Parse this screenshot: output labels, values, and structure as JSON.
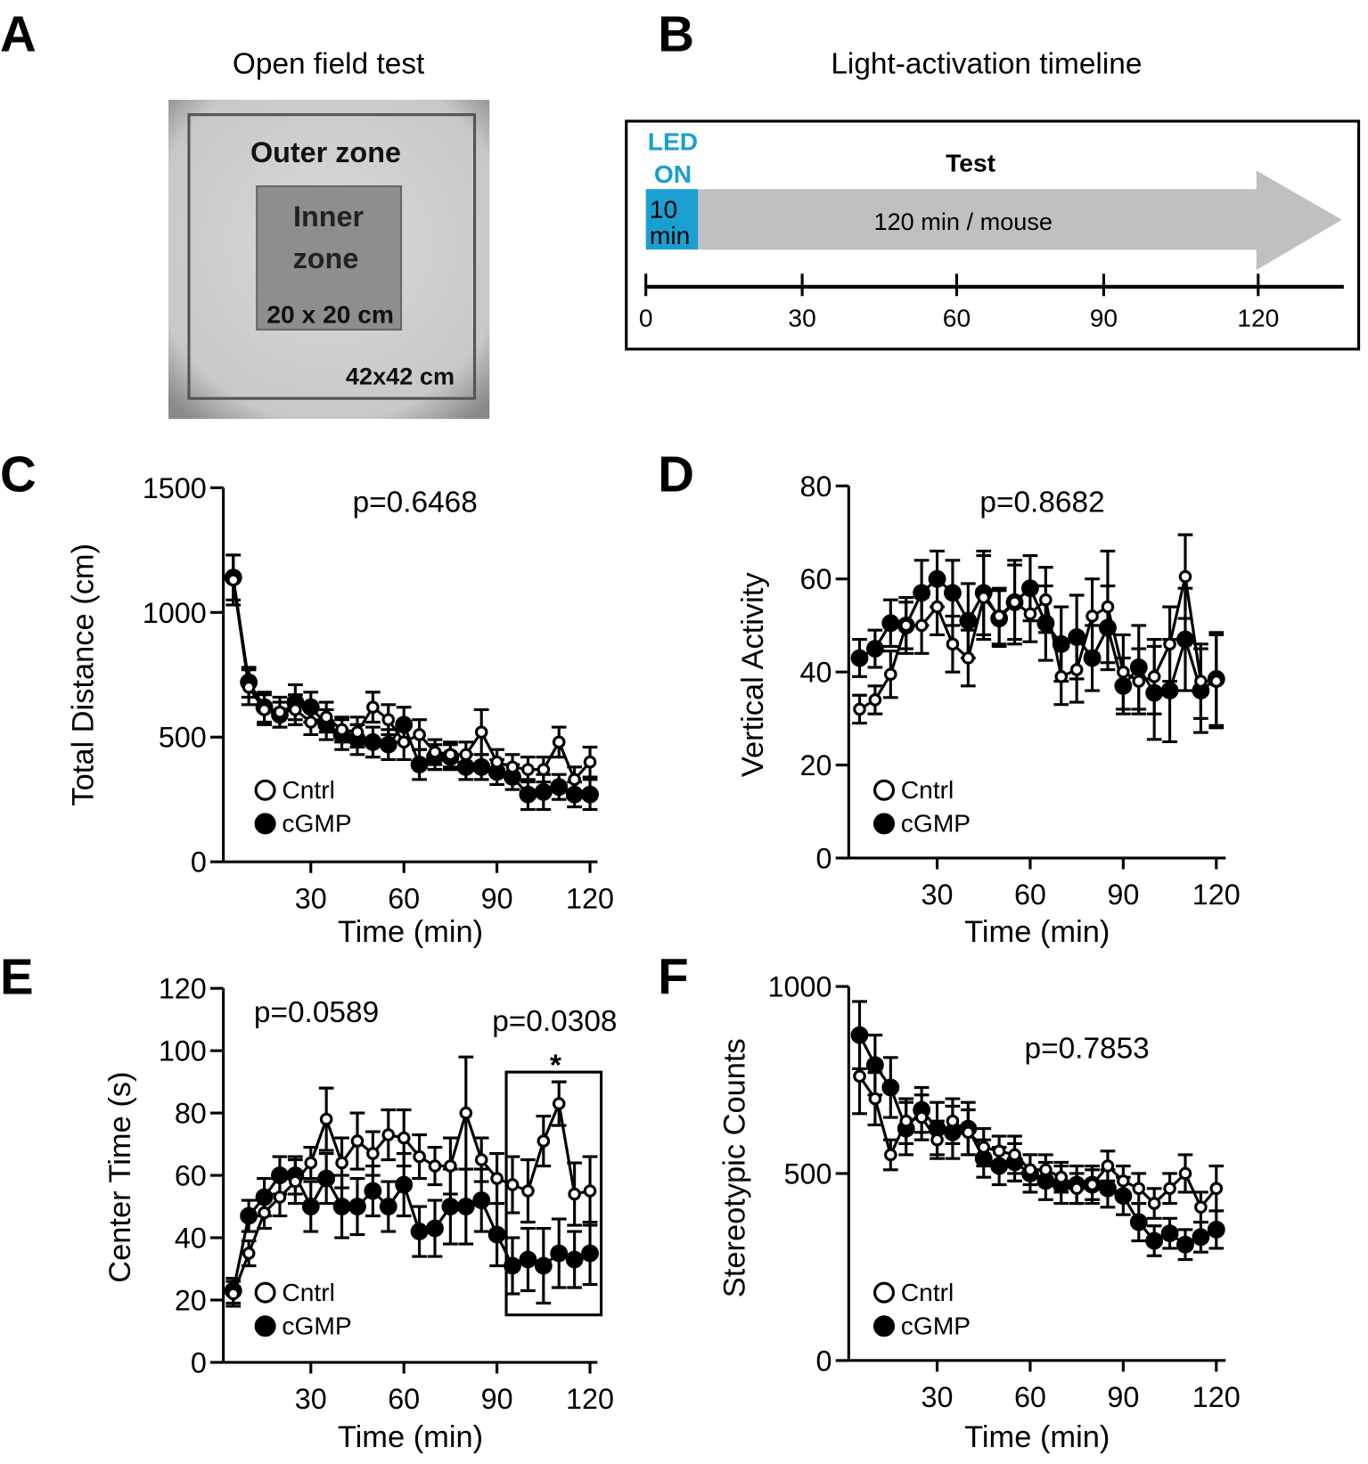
{
  "panel_labels": [
    "A",
    "B",
    "C",
    "D",
    "E",
    "F"
  ],
  "panel_a": {
    "title": "Open field test",
    "outer_zone": "Outer zone",
    "inner_zone_line1": "Inner",
    "inner_zone_line2": "zone",
    "inner_size": "20 x 20 cm",
    "outer_size": "42x42 cm"
  },
  "panel_b": {
    "title": "Light-activation timeline",
    "led_line1": "LED",
    "led_line2": "ON",
    "led_duration_line1": "10",
    "led_duration_line2": "min",
    "test_label": "Test",
    "test_duration": "120 min / mouse",
    "timeline_ticks": [
      "0",
      "30",
      "60",
      "90",
      "120"
    ],
    "led_color": "#1a9fd0",
    "arrow_color": "#c0c0c0"
  },
  "chart_data": [
    {
      "id": "C",
      "type": "line",
      "xlabel": "Time (min)",
      "ylabel": "Total Distance (cm)",
      "ylim": [
        0,
        1500
      ],
      "xlim": [
        0,
        120
      ],
      "yticks": [
        "0",
        "500",
        "1000",
        "1500"
      ],
      "xticks": [
        "30",
        "60",
        "90",
        "120"
      ],
      "annotations": [
        "p=0.6468"
      ],
      "x": [
        5,
        10,
        15,
        20,
        25,
        30,
        35,
        40,
        45,
        50,
        55,
        60,
        65,
        70,
        75,
        80,
        85,
        90,
        95,
        100,
        105,
        110,
        115,
        120
      ],
      "series": [
        {
          "name": "Cntrl",
          "marker": "open",
          "values": [
            1130,
            700,
            610,
            600,
            610,
            560,
            580,
            530,
            520,
            620,
            570,
            480,
            510,
            440,
            430,
            430,
            520,
            400,
            380,
            370,
            370,
            480,
            330,
            400
          ],
          "sem": [
            100,
            70,
            60,
            60,
            60,
            50,
            60,
            50,
            60,
            60,
            60,
            70,
            60,
            50,
            50,
            50,
            90,
            50,
            50,
            50,
            50,
            60,
            50,
            60
          ]
        },
        {
          "name": "cGMP",
          "marker": "filled",
          "values": [
            1140,
            720,
            620,
            590,
            640,
            620,
            550,
            510,
            490,
            480,
            470,
            550,
            390,
            420,
            420,
            380,
            380,
            360,
            340,
            270,
            280,
            300,
            270,
            270
          ],
          "sem": [
            90,
            60,
            60,
            50,
            70,
            60,
            60,
            60,
            60,
            60,
            60,
            70,
            60,
            50,
            50,
            50,
            50,
            50,
            50,
            60,
            70,
            50,
            50,
            60
          ]
        }
      ]
    },
    {
      "id": "D",
      "type": "line",
      "xlabel": "Time (min)",
      "ylabel": "Vertical Activity",
      "ylim": [
        0,
        80
      ],
      "xlim": [
        0,
        120
      ],
      "yticks": [
        "0",
        "20",
        "40",
        "60",
        "80"
      ],
      "xticks": [
        "30",
        "60",
        "90",
        "120"
      ],
      "annotations": [
        "p=0.8682"
      ],
      "x": [
        5,
        10,
        15,
        20,
        25,
        30,
        35,
        40,
        45,
        50,
        55,
        60,
        65,
        70,
        75,
        80,
        85,
        90,
        95,
        100,
        105,
        110,
        115,
        120
      ],
      "series": [
        {
          "name": "Cntrl",
          "marker": "open",
          "values": [
            32,
            34,
            39.5,
            50,
            50,
            54,
            46,
            43,
            56,
            52,
            55,
            52.5,
            55.5,
            39,
            40.5,
            52,
            54,
            40,
            38,
            39,
            46,
            60.5,
            38,
            38
          ],
          "sem": [
            3,
            3,
            5,
            5,
            6,
            6,
            6,
            6,
            9,
            6,
            8,
            6,
            7,
            6,
            7,
            8,
            12,
            8,
            7,
            8,
            8,
            9,
            8,
            10
          ]
        },
        {
          "name": "cGMP",
          "marker": "filled",
          "values": [
            43,
            45,
            50.5,
            50,
            57,
            60,
            57,
            51,
            57,
            51.5,
            55,
            58,
            50.5,
            46,
            47.5,
            43,
            49.5,
            37,
            41,
            35.5,
            36,
            47,
            36,
            38.5
          ],
          "sem": [
            4,
            4,
            5,
            6,
            7,
            6,
            7,
            8,
            9,
            6,
            9,
            7,
            8,
            8,
            9,
            7,
            9,
            6,
            9,
            10,
            11,
            11,
            9,
            10
          ]
        }
      ]
    },
    {
      "id": "E",
      "type": "line",
      "xlabel": "Time (min)",
      "ylabel": "Center Time (s)",
      "ylim": [
        0,
        120
      ],
      "xlim": [
        0,
        120
      ],
      "yticks": [
        "0",
        "20",
        "40",
        "60",
        "80",
        "100",
        "120"
      ],
      "xticks": [
        "30",
        "60",
        "90",
        "120"
      ],
      "annotations": [
        "p=0.0589",
        "p=0.0308",
        "*"
      ],
      "x": [
        5,
        10,
        15,
        20,
        25,
        30,
        35,
        40,
        45,
        50,
        55,
        60,
        65,
        70,
        75,
        80,
        85,
        90,
        95,
        100,
        105,
        110,
        115,
        120
      ],
      "series": [
        {
          "name": "Cntrl",
          "marker": "open",
          "values": [
            22,
            35,
            48,
            53,
            58,
            64,
            78,
            64,
            71,
            67,
            73,
            72,
            66,
            63,
            63,
            80,
            65,
            59,
            57,
            55,
            71,
            83,
            54,
            55
          ],
          "sem": [
            4,
            4,
            5,
            6,
            7,
            5,
            10,
            8,
            9,
            7,
            8,
            9,
            7,
            6,
            9,
            18,
            7,
            8,
            9,
            10,
            8,
            7,
            10,
            11
          ]
        },
        {
          "name": "cGMP",
          "marker": "filled",
          "values": [
            23,
            47,
            53,
            60,
            60,
            50,
            59,
            50,
            50,
            55,
            50,
            57,
            42,
            43,
            50,
            50,
            52,
            41,
            31,
            33,
            31,
            35,
            33,
            35
          ],
          "sem": [
            4,
            5,
            6,
            6,
            6,
            8,
            8,
            10,
            9,
            8,
            8,
            10,
            8,
            9,
            12,
            12,
            10,
            10,
            9,
            10,
            12,
            11,
            9,
            10
          ]
        }
      ]
    },
    {
      "id": "F",
      "type": "line",
      "xlabel": "Time (min)",
      "ylabel": "Stereotypic Counts",
      "ylim": [
        0,
        1000
      ],
      "xlim": [
        0,
        120
      ],
      "yticks": [
        "0",
        "500",
        "1000"
      ],
      "xticks": [
        "30",
        "60",
        "90",
        "120"
      ],
      "annotations": [
        "p=0.7853"
      ],
      "x": [
        5,
        10,
        15,
        20,
        25,
        30,
        35,
        40,
        45,
        50,
        55,
        60,
        65,
        70,
        75,
        80,
        85,
        90,
        95,
        100,
        105,
        110,
        115,
        120
      ],
      "series": [
        {
          "name": "Cntrl",
          "marker": "open",
          "values": [
            760,
            700,
            550,
            640,
            650,
            590,
            640,
            610,
            570,
            560,
            550,
            510,
            510,
            490,
            460,
            470,
            520,
            480,
            460,
            420,
            460,
            500,
            410,
            460
          ],
          "sem": [
            100,
            70,
            40,
            60,
            60,
            50,
            60,
            60,
            50,
            40,
            50,
            40,
            40,
            40,
            40,
            40,
            40,
            40,
            40,
            40,
            40,
            50,
            40,
            60
          ]
        },
        {
          "name": "cGMP",
          "marker": "filled",
          "values": [
            870,
            790,
            730,
            620,
            670,
            620,
            610,
            620,
            540,
            520,
            530,
            500,
            480,
            470,
            470,
            470,
            460,
            440,
            370,
            320,
            340,
            310,
            330,
            350
          ],
          "sem": [
            90,
            80,
            80,
            70,
            60,
            70,
            70,
            70,
            50,
            50,
            50,
            50,
            50,
            50,
            50,
            50,
            50,
            50,
            50,
            40,
            40,
            40,
            40,
            50
          ]
        }
      ]
    }
  ]
}
